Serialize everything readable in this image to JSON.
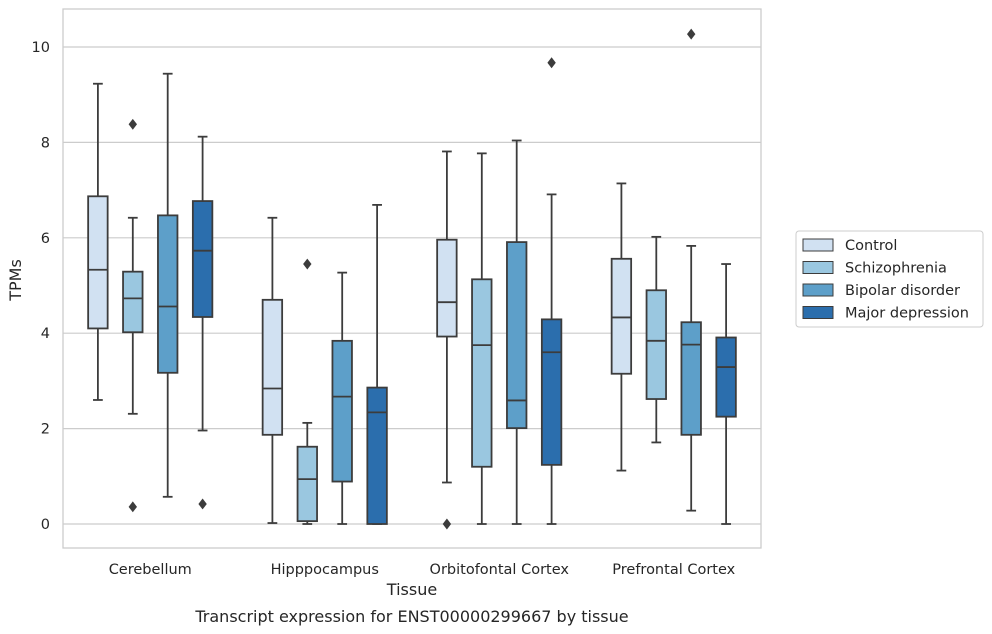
{
  "chart_data": {
    "type": "box",
    "title": "Transcript expression for ENST00000299667 by tissue",
    "xlabel": "Tissue",
    "ylabel": "TPMs",
    "ylim": [
      -0.5,
      10.8
    ],
    "yticks": [
      0,
      2,
      4,
      6,
      8,
      10
    ],
    "grid": "horizontal",
    "legend_position": "right",
    "categories": [
      "Cerebellum",
      "Hipppocampus",
      "Orbitofontal Cortex",
      "Prefrontal Cortex"
    ],
    "series": [
      {
        "name": "Control",
        "color": "#d1e1f2",
        "boxes": [
          {
            "whisker_low": 2.6,
            "q1": 4.1,
            "median": 5.33,
            "q3": 6.87,
            "whisker_high": 9.23,
            "outliers": []
          },
          {
            "whisker_low": 0.02,
            "q1": 1.87,
            "median": 2.84,
            "q3": 4.7,
            "whisker_high": 6.42,
            "outliers": []
          },
          {
            "whisker_low": 0.87,
            "q1": 3.93,
            "median": 4.65,
            "q3": 5.96,
            "whisker_high": 7.81,
            "outliers": [
              0.0
            ]
          },
          {
            "whisker_low": 1.12,
            "q1": 3.15,
            "median": 4.33,
            "q3": 5.56,
            "whisker_high": 7.14,
            "outliers": []
          }
        ]
      },
      {
        "name": "Schizophrenia",
        "color": "#9ac7e0",
        "boxes": [
          {
            "whisker_low": 2.31,
            "q1": 4.02,
            "median": 4.73,
            "q3": 5.29,
            "whisker_high": 6.42,
            "outliers": [
              8.38,
              0.36
            ]
          },
          {
            "whisker_low": 0.0,
            "q1": 0.06,
            "median": 0.94,
            "q3": 1.62,
            "whisker_high": 2.12,
            "outliers": [
              5.45
            ]
          },
          {
            "whisker_low": 0.0,
            "q1": 1.2,
            "median": 3.75,
            "q3": 5.13,
            "whisker_high": 7.77,
            "outliers": []
          },
          {
            "whisker_low": 1.71,
            "q1": 2.62,
            "median": 3.84,
            "q3": 4.9,
            "whisker_high": 6.02,
            "outliers": []
          }
        ]
      },
      {
        "name": "Bipolar disorder",
        "color": "#5d9fc9",
        "boxes": [
          {
            "whisker_low": 0.57,
            "q1": 3.17,
            "median": 4.56,
            "q3": 6.47,
            "whisker_high": 9.44,
            "outliers": []
          },
          {
            "whisker_low": 0.0,
            "q1": 0.89,
            "median": 2.67,
            "q3": 3.84,
            "whisker_high": 5.27,
            "outliers": []
          },
          {
            "whisker_low": 0.0,
            "q1": 2.01,
            "median": 2.59,
            "q3": 5.91,
            "whisker_high": 8.04,
            "outliers": []
          },
          {
            "whisker_low": 0.28,
            "q1": 1.87,
            "median": 3.76,
            "q3": 4.23,
            "whisker_high": 5.83,
            "outliers": [
              10.27
            ]
          }
        ]
      },
      {
        "name": "Major depression",
        "color": "#2b6ead",
        "boxes": [
          {
            "whisker_low": 1.96,
            "q1": 4.34,
            "median": 5.73,
            "q3": 6.77,
            "whisker_high": 8.12,
            "outliers": [
              0.42
            ]
          },
          {
            "whisker_low": 0.0,
            "q1": 0.0,
            "median": 2.34,
            "q3": 2.86,
            "whisker_high": 6.69,
            "outliers": []
          },
          {
            "whisker_low": 0.0,
            "q1": 1.24,
            "median": 3.6,
            "q3": 4.29,
            "whisker_high": 6.91,
            "outliers": [
              9.67
            ]
          },
          {
            "whisker_low": 0.0,
            "q1": 2.25,
            "median": 3.29,
            "q3": 3.91,
            "whisker_high": 5.45,
            "outliers": []
          }
        ]
      }
    ]
  }
}
